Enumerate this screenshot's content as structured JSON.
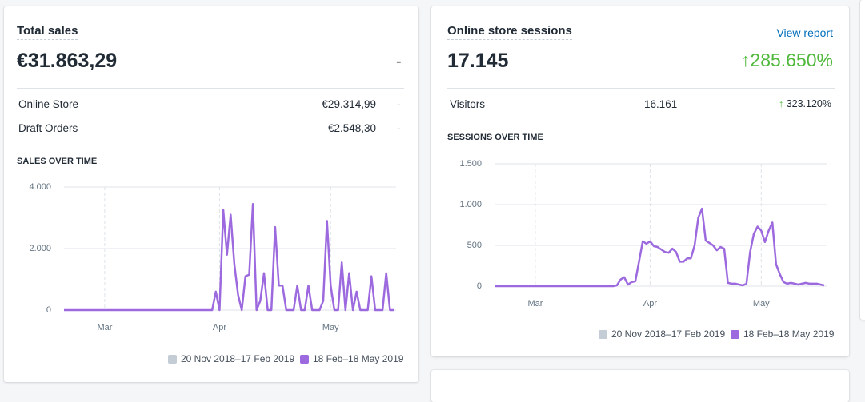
{
  "cards": [
    {
      "title": "Total sales",
      "total": "€31.863,29",
      "change": "-",
      "rows": [
        [
          "Online Store",
          "€29.314,99",
          "-"
        ],
        [
          "Draft Orders",
          "€2.548,30",
          "-"
        ]
      ],
      "chart_title": "SALES OVER TIME"
    },
    {
      "title": "Online store sessions",
      "link": "View report",
      "total": "17.145",
      "change": "285.650%",
      "rows": [
        [
          "Visitors",
          "16.161",
          "323.120%"
        ]
      ],
      "chart_title": "SESSIONS OVER TIME"
    }
  ],
  "chart_data": [
    {
      "type": "line",
      "categories": [
        null,
        null,
        null,
        null,
        null,
        null,
        null,
        null,
        null,
        null,
        null,
        "Mar",
        null,
        null,
        null,
        null,
        null,
        null,
        null,
        null,
        null,
        null,
        null,
        null,
        null,
        null,
        null,
        null,
        null,
        null,
        null,
        null,
        null,
        null,
        null,
        null,
        null,
        null,
        null,
        null,
        null,
        null,
        "Apr",
        null,
        null,
        null,
        null,
        null,
        null,
        null,
        null,
        null,
        null,
        null,
        null,
        null,
        null,
        null,
        null,
        null,
        null,
        null,
        null,
        null,
        null,
        null,
        null,
        null,
        null,
        null,
        null,
        null,
        "May",
        null,
        null,
        null,
        null,
        null,
        null,
        null,
        null,
        null,
        null,
        null,
        null,
        null,
        null,
        null,
        null,
        null
      ],
      "series": [
        {
          "name": "18 Feb–18 May 2019",
          "color": "#9c6ade",
          "values": [
            0,
            0,
            0,
            0,
            0,
            0,
            0,
            0,
            0,
            0,
            0,
            0,
            0,
            0,
            0,
            0,
            0,
            0,
            0,
            0,
            0,
            0,
            0,
            0,
            0,
            0,
            0,
            0,
            0,
            0,
            0,
            0,
            0,
            0,
            0,
            0,
            0,
            0,
            0,
            0,
            0,
            600,
            0,
            3250,
            1800,
            3100,
            1500,
            500,
            0,
            1100,
            1150,
            3450,
            0,
            300,
            1200,
            0,
            0,
            2700,
            800,
            800,
            0,
            0,
            0,
            800,
            0,
            0,
            800,
            0,
            0,
            0,
            300,
            2900,
            800,
            0,
            0,
            1550,
            0,
            1200,
            0,
            600,
            0,
            0,
            0,
            1100,
            0,
            0,
            0,
            1200,
            0,
            0
          ]
        }
      ],
      "comparison": {
        "name": "20 Nov 2018–17 Feb 2019",
        "color": "#c4cdd5"
      },
      "ylim": [
        0,
        4000
      ],
      "yticks": [
        0,
        {
          "value": 2000,
          "label": "2.000"
        },
        {
          "value": 4000,
          "label": "4.000"
        }
      ],
      "grid": true
    },
    {
      "type": "line",
      "categories": [
        null,
        null,
        null,
        null,
        null,
        null,
        null,
        null,
        null,
        null,
        null,
        "Mar",
        null,
        null,
        null,
        null,
        null,
        null,
        null,
        null,
        null,
        null,
        null,
        null,
        null,
        null,
        null,
        null,
        null,
        null,
        null,
        null,
        null,
        null,
        null,
        null,
        null,
        null,
        null,
        null,
        null,
        null,
        "Apr",
        null,
        null,
        null,
        null,
        null,
        null,
        null,
        null,
        null,
        null,
        null,
        null,
        null,
        null,
        null,
        null,
        null,
        null,
        null,
        null,
        null,
        null,
        null,
        null,
        null,
        null,
        null,
        null,
        null,
        "May",
        null,
        null,
        null,
        null,
        null,
        null,
        null,
        null,
        null,
        null,
        null,
        null,
        null,
        null,
        null,
        null,
        null
      ],
      "series": [
        {
          "name": "18 Feb–18 May 2019",
          "color": "#9c6ade",
          "values": [
            0,
            0,
            0,
            0,
            0,
            0,
            0,
            0,
            0,
            0,
            0,
            0,
            0,
            0,
            0,
            0,
            0,
            0,
            0,
            0,
            0,
            0,
            0,
            0,
            0,
            0,
            0,
            0,
            0,
            0,
            0,
            0,
            0,
            10,
            80,
            110,
            20,
            50,
            60,
            300,
            550,
            520,
            550,
            490,
            480,
            450,
            420,
            410,
            460,
            420,
            300,
            300,
            340,
            340,
            500,
            840,
            950,
            560,
            530,
            500,
            440,
            480,
            460,
            40,
            30,
            30,
            20,
            10,
            30,
            420,
            640,
            730,
            680,
            540,
            680,
            780,
            270,
            150,
            50,
            30,
            40,
            30,
            20,
            30,
            40,
            30,
            30,
            30,
            20,
            10
          ]
        }
      ],
      "comparison": {
        "name": "20 Nov 2018–17 Feb 2019",
        "color": "#c4cdd5"
      },
      "ylim": [
        0,
        1500
      ],
      "yticks": [
        0,
        500,
        {
          "value": 1000,
          "label": "1.000"
        },
        {
          "value": 1500,
          "label": "1.500"
        }
      ],
      "grid": true
    }
  ]
}
